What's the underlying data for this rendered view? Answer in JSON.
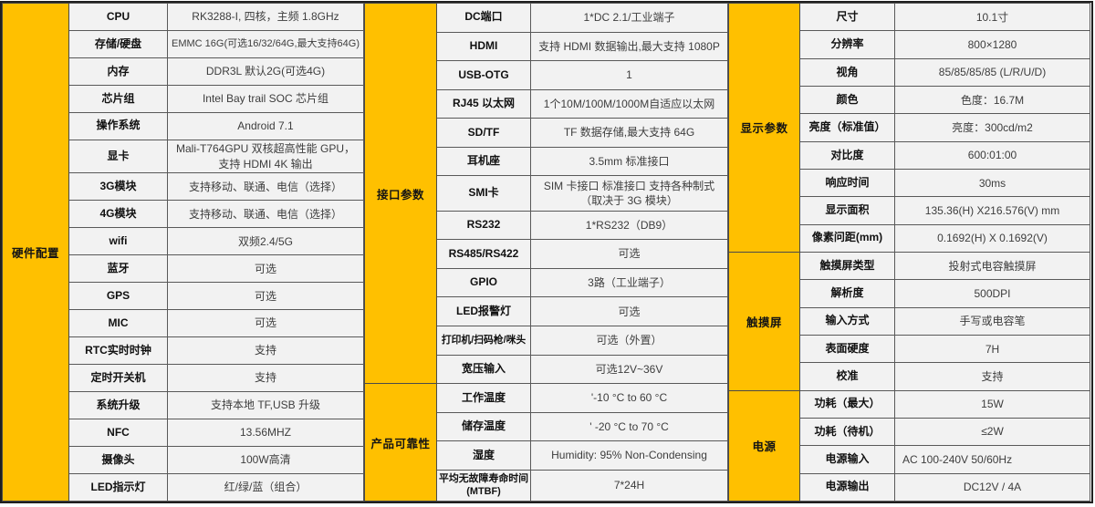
{
  "colors": {
    "accent": "#FFC000",
    "cell_bg": "#F2F2F2",
    "border": "#595959",
    "label_text": "#111111",
    "value_text": "#3D3D3D"
  },
  "blocks": [
    {
      "name": "hardware",
      "sections": [
        {
          "title": "硬件配置",
          "rows": [
            {
              "label": "CPU",
              "value": "RK3288-I, 四核，主频 1.8GHz"
            },
            {
              "label": "存储/硬盘",
              "value": "EMMC 16G(可选16/32/64G,最大支持64G)"
            },
            {
              "label": "内存",
              "value": "DDR3L 默认2G(可选4G)"
            },
            {
              "label": "芯片组",
              "value": "Intel Bay trail SOC 芯片组"
            },
            {
              "label": "操作系统",
              "value": "Android 7.1"
            },
            {
              "label": "显卡",
              "value": "Mali-T764GPU 双核超高性能 GPU，支持 HDMI 4K 输出"
            },
            {
              "label": "3G模块",
              "value": "支持移动、联通、电信（选择）"
            },
            {
              "label": "4G模块",
              "value": "支持移动、联通、电信（选择）"
            },
            {
              "label": "wifi",
              "value": "双频2.4/5G"
            },
            {
              "label": "蓝牙",
              "value": "可选"
            },
            {
              "label": "GPS",
              "value": "可选"
            },
            {
              "label": "MIC",
              "value": "可选"
            },
            {
              "label": "RTC实时时钟",
              "value": "支持"
            },
            {
              "label": "定时开关机",
              "value": "支持"
            },
            {
              "label": "系统升级",
              "value": "支持本地 TF,USB 升级"
            },
            {
              "label": "NFC",
              "value": "13.56MHZ"
            },
            {
              "label": "摄像头",
              "value": "100W高清"
            },
            {
              "label": "LED指示灯",
              "value": "红/绿/蓝（组合）"
            }
          ]
        }
      ]
    },
    {
      "name": "interface",
      "sections": [
        {
          "title": "接口参数",
          "rows": [
            {
              "label": "DC端口",
              "value": "1*DC 2.1/工业端子"
            },
            {
              "label": "HDMI",
              "value": "支持 HDMI 数据输出,最大支持 1080P"
            },
            {
              "label": "USB-OTG",
              "value": "1"
            },
            {
              "label": "RJ45 以太网",
              "value": "1个10M/100M/1000M自适应以太网"
            },
            {
              "label": "SD/TF",
              "value": "TF 数据存储,最大支持 64G"
            },
            {
              "label": "耳机座",
              "value": "3.5mm 标准接口"
            },
            {
              "label": "SMI卡",
              "value": "SIM 卡接口 标准接口 支持各种制式（取决于 3G 模块）"
            },
            {
              "label": "RS232",
              "value": "1*RS232（DB9）"
            },
            {
              "label": "RS485/RS422",
              "value": "可选"
            },
            {
              "label": "GPIO",
              "value": "3路（工业端子）"
            },
            {
              "label": "LED报警灯",
              "value": "可选"
            },
            {
              "label": "打印机/扫码枪/咪头",
              "value": "可选（外置）"
            },
            {
              "label": "宽压输入",
              "value": "可选12V~36V"
            }
          ]
        },
        {
          "title": "产品可靠性",
          "rows": [
            {
              "label": "工作温度",
              "value": "'-10 °C to 60 °C"
            },
            {
              "label": "储存温度",
              "value": "' -20 °C to 70 °C"
            },
            {
              "label": "湿度",
              "value": "Humidity: 95% Non-Condensing"
            },
            {
              "label": "平均无故障寿命时间\n(MTBF)",
              "value": "7*24H"
            }
          ]
        }
      ]
    },
    {
      "name": "display",
      "sections": [
        {
          "title": "显示参数",
          "rows": [
            {
              "label": "尺寸",
              "value": "10.1寸"
            },
            {
              "label": "分辨率",
              "value": "800×1280"
            },
            {
              "label": "视角",
              "value": "85/85/85/85 (L/R/U/D)"
            },
            {
              "label": "颜色",
              "value": "色度：16.7M"
            },
            {
              "label": "亮度（标准值）",
              "value": "亮度：300cd/m2"
            },
            {
              "label": "对比度",
              "value": "600:01:00"
            },
            {
              "label": "响应时间",
              "value": "30ms"
            },
            {
              "label": "显示面积",
              "value": "135.36(H) X216.576(V) mm"
            },
            {
              "label": "像素问距(mm)",
              "value": "0.1692(H) X 0.1692(V)"
            }
          ]
        },
        {
          "title": "触摸屏",
          "rows": [
            {
              "label": "触摸屏类型",
              "value": "投射式电容触摸屏"
            },
            {
              "label": "解析度",
              "value": "500DPI"
            },
            {
              "label": "输入方式",
              "value": "手写或电容笔"
            },
            {
              "label": "表面硬度",
              "value": "7H"
            },
            {
              "label": "校准",
              "value": "支持"
            }
          ]
        },
        {
          "title": "电源",
          "rows": [
            {
              "label": "功耗（最大）",
              "value": "15W"
            },
            {
              "label": "功耗（待机）",
              "value": "≤2W"
            },
            {
              "label": "电源输入",
              "value": "AC 100-240V  50/60Hz",
              "align": "left"
            },
            {
              "label": "电源输出",
              "value": "DC12V / 4A"
            }
          ]
        }
      ]
    }
  ]
}
